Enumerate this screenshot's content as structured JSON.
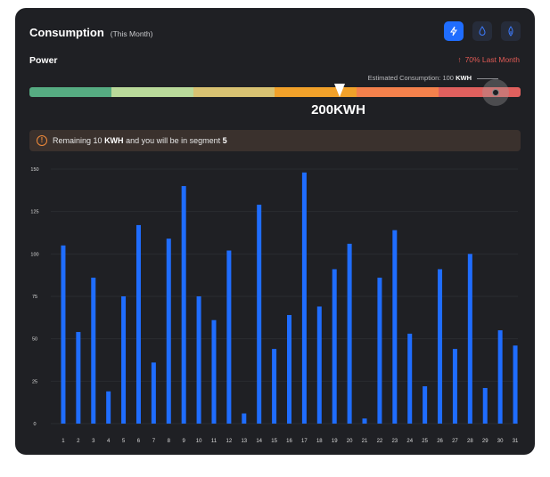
{
  "header": {
    "title": "Consumption",
    "subtitle": "(This Month)",
    "icons": [
      "lightning-icon",
      "water-drop-icon",
      "gas-icon"
    ]
  },
  "power": {
    "label": "Power",
    "trend_arrow": "↑",
    "trend_text": "70% Last Month",
    "estimated_prefix": "Estimated Consumption: 100",
    "estimated_unit": "KWH",
    "current_value": "200KWH",
    "segments": [
      "#56ac82",
      "#b9d99a",
      "#d8c272",
      "#f1a12a",
      "#f4814c",
      "#e0605e"
    ]
  },
  "alert": {
    "icon": "!",
    "prefix": "Remaining 10",
    "unit": "KWH",
    "middle": "and you will be in segment",
    "segment": "5"
  },
  "colors": {
    "bar": "#1f6dff",
    "grid": "#2a2b30",
    "tick": "#d9d9d9"
  },
  "chart_data": {
    "type": "bar",
    "categories": [
      "1",
      "2",
      "3",
      "4",
      "5",
      "6",
      "7",
      "8",
      "9",
      "10",
      "11",
      "12",
      "13",
      "14",
      "15",
      "16",
      "17",
      "18",
      "19",
      "20",
      "21",
      "22",
      "23",
      "24",
      "25",
      "26",
      "27",
      "28",
      "29",
      "30",
      "31"
    ],
    "values": [
      105,
      54,
      86,
      19,
      75,
      117,
      36,
      109,
      140,
      75,
      61,
      102,
      6,
      129,
      44,
      64,
      148,
      69,
      91,
      106,
      3,
      86,
      114,
      53,
      22,
      91,
      44,
      100,
      21,
      55,
      46
    ],
    "ylim": [
      0,
      150
    ],
    "yticks": [
      "150",
      "125",
      "100",
      "75",
      "50",
      "25",
      "0"
    ],
    "grid": true
  }
}
